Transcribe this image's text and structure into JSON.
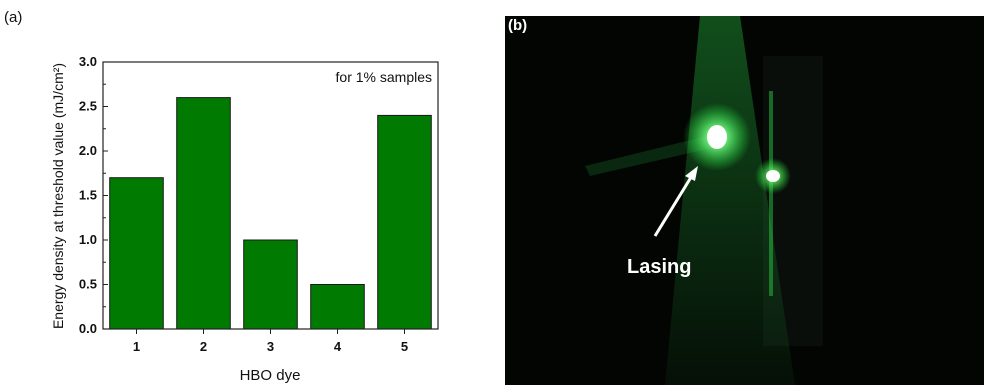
{
  "panels": {
    "left_label": "(a)",
    "right_label": "(b)"
  },
  "chart_data": {
    "type": "bar",
    "categories": [
      "1",
      "2",
      "3",
      "4",
      "5"
    ],
    "values": [
      1.7,
      2.6,
      1.0,
      0.5,
      2.4
    ],
    "title": "",
    "xlabel": "HBO dye",
    "ylabel": "Energy density at threshold value (mJ/cm²)",
    "ylim": [
      0,
      3.0
    ],
    "yticks": [
      "0.0",
      "0.5",
      "1.0",
      "1.5",
      "2.0",
      "2.5",
      "3.0"
    ],
    "annotation": "for 1% samples",
    "bar_color": "#007a00",
    "grid": false
  },
  "photo": {
    "label": "Lasing",
    "beam_color": "#3cff5a"
  }
}
